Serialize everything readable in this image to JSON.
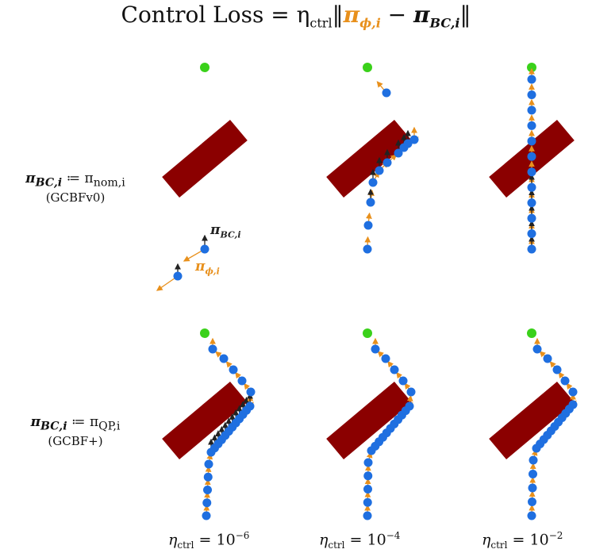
{
  "title": {
    "prefix": "Control Loss = η",
    "eta_sub": "ctrl",
    "pi_phi": "π",
    "pi_phi_sub": "ϕ,i",
    "minus": " − ",
    "pi_bc": "π",
    "pi_bc_sub": "BC,i"
  },
  "rows": [
    {
      "label_lhs": "π",
      "label_lhs_sub": "BC,i",
      "label_rhs": " ≔ π",
      "label_rhs_sub": "nom,i",
      "method": "(GCBFv0)"
    },
    {
      "label_lhs": "π",
      "label_lhs_sub": "BC,i",
      "label_rhs": " ≔ π",
      "label_rhs_sub": "QP,i",
      "method": "(GCBF+)"
    }
  ],
  "columns": [
    {
      "eta": "η",
      "eta_sub": "ctrl",
      "eq": " = 10",
      "exp": "−6"
    },
    {
      "eta": "η",
      "eta_sub": "ctrl",
      "eq": " = 10",
      "exp": "−4"
    },
    {
      "eta": "η",
      "eta_sub": "ctrl",
      "eq": " = 10",
      "exp": "−2"
    }
  ],
  "legend": {
    "bc_label": "π",
    "bc_sub": "BC,i",
    "phi_label": "π",
    "phi_sub": "ϕ,i"
  },
  "colors": {
    "obstacle": "#8b0000",
    "goal": "#3ad11a",
    "agent": "#1f6fe0",
    "phi_arrow": "#e8901c",
    "bc_arrow": "#222222"
  }
}
